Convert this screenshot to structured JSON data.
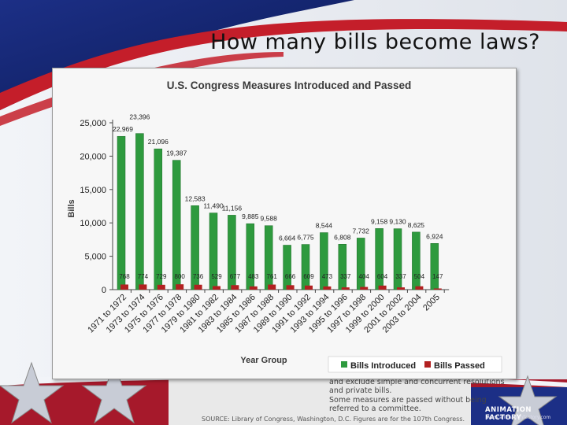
{
  "slide": {
    "title": "How many bills become laws?"
  },
  "note": {
    "lines": [
      "and exclude simple and concurrent resolutions",
      "and private bills.",
      "Some measures are passed without being",
      "referred to a committee."
    ],
    "source": "SOURCE: Library of Congress, Washington, D.C. Figures are for the 107th Congress."
  },
  "branding": {
    "name": "ANIMATION FACTORY",
    "url": "www.animationfactory.com"
  },
  "colors": {
    "introduced": "#2e9a3e",
    "passed": "#b22020",
    "axis": "#444444",
    "title": "#3a3a3a"
  },
  "chart_data": {
    "type": "bar",
    "title": "U.S. Congress Measures Introduced and Passed",
    "xlabel": "Year Group",
    "ylabel": "Bills",
    "ylim": [
      0,
      25000
    ],
    "yticks": [
      "0",
      "5,000",
      "10,000",
      "15,000",
      "20,000",
      "25,000"
    ],
    "ytick_values": [
      0,
      5000,
      10000,
      15000,
      20000,
      25000
    ],
    "categories": [
      "1971 to 1972",
      "1973 to 1974",
      "1975 to 1976",
      "1977 to 1978",
      "1979 to 1980",
      "1981 to 1982",
      "1983 to 1984",
      "1985 to 1986",
      "1987 to 1988",
      "1989 to 1990",
      "1991 to 1992",
      "1993 to 1994",
      "1995 to 1996",
      "1997 to 1998",
      "1999 to 2000",
      "2001 to 2002",
      "2003 to 2004",
      "2005"
    ],
    "legend_position": "bottom-right",
    "series": [
      {
        "name": "Bills Introduced",
        "values": [
          22969,
          23396,
          21096,
          19387,
          12583,
          11490,
          11156,
          9885,
          9588,
          6664,
          6775,
          8544,
          6808,
          7732,
          9158,
          9130,
          8625,
          6924
        ],
        "labels": [
          "22,969",
          "23,396",
          "21,096",
          "19,387",
          "12,583",
          "11,490",
          "11,156",
          "9,885",
          "9,588",
          "6,664",
          "6,775",
          "8,544",
          "6,808",
          "7,732",
          "9,158",
          "9,130",
          "8,625",
          "6,924"
        ]
      },
      {
        "name": "Bills Passed",
        "values": [
          768,
          774,
          729,
          800,
          736,
          529,
          677,
          483,
          761,
          666,
          609,
          473,
          337,
          404,
          604,
          337,
          504,
          147
        ],
        "labels": [
          "768",
          "774",
          "729",
          "800",
          "736",
          "529",
          "677",
          "483",
          "761",
          "666",
          "609",
          "473",
          "337",
          "404",
          "604",
          "337",
          "504",
          "147"
        ]
      }
    ]
  }
}
